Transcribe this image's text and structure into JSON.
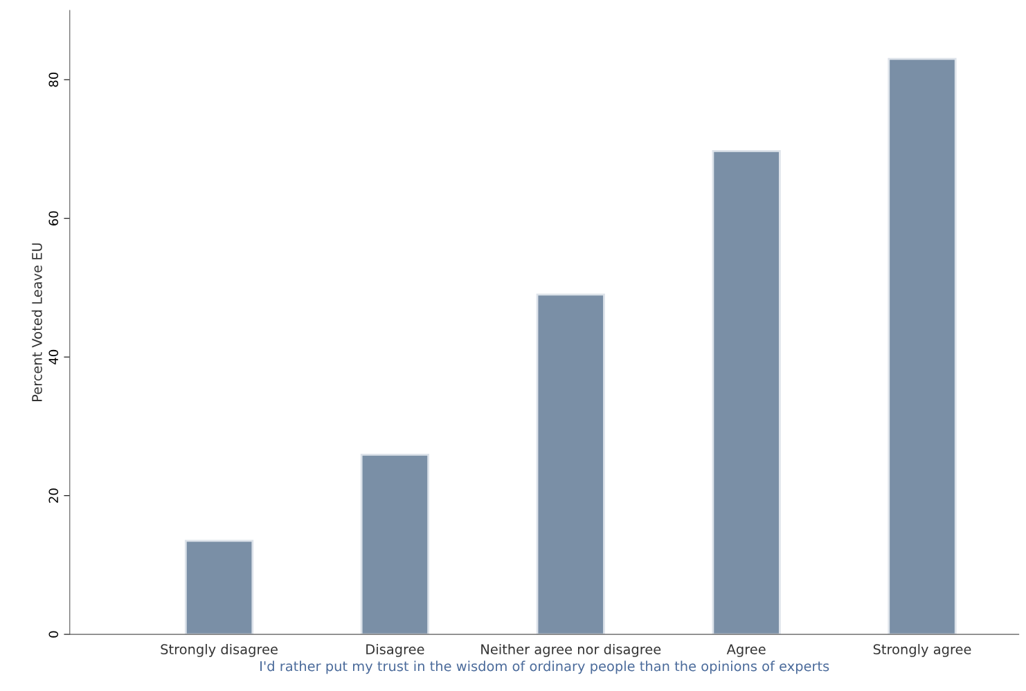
{
  "chart_data": {
    "type": "bar",
    "xlabel": "I'd rather put my trust in the wisdom of ordinary people than the opinions of experts",
    "ylabel": "Percent Voted Leave EU",
    "categories": [
      "Strongly disagree",
      "Disagree",
      "Neither agree nor disagree",
      "Agree",
      "Strongly agree"
    ],
    "values": [
      13.5,
      25.9,
      49.0,
      69.7,
      83.0
    ],
    "color": "#7a8fa6",
    "ylim": [
      0,
      90
    ],
    "yticks": [
      0,
      20,
      40,
      60,
      80
    ],
    "grid": false
  }
}
